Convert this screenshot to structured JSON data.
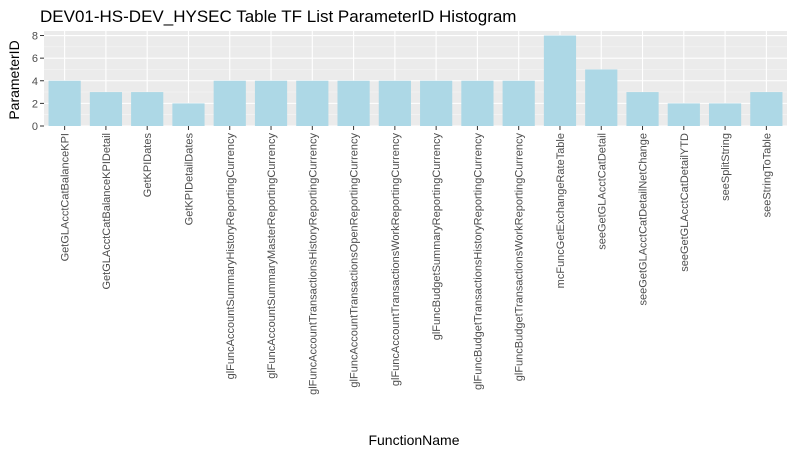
{
  "chart_data": {
    "type": "bar",
    "title": "DEV01-HS-DEV_HYSEC Table TF List ParameterID Histogram",
    "xlabel": "FunctionName",
    "ylabel": "ParameterID",
    "ylim": [
      0,
      8.4
    ],
    "yticks": [
      0,
      2,
      4,
      6,
      8
    ],
    "grid": true,
    "colors": {
      "bar": "#add8e6",
      "panel": "#ebebeb",
      "grid_major": "#ffffff",
      "text": "#000000",
      "tick_text": "#4d4d4d"
    },
    "categories": [
      "GetGLAcctCatBalanceKPI",
      "GetGLAcctCatBalanceKPIDetail",
      "GetKPIDates",
      "GetKPIDetailDates",
      "glFuncAccountSummaryHistoryReportingCurrency",
      "glFuncAccountSummaryMasterReportingCurrency",
      "glFuncAccountTransactionsHistoryReportingCurrency",
      "glFuncAccountTransactionsOpenReportingCurrency",
      "glFuncAccountTransactionsWorkReportingCurrency",
      "glFuncBudgetSummaryReportingCurrency",
      "glFuncBudgetTransactionsHistoryReportingCurrency",
      "glFuncBudgetTransactionsWorkReportingCurrency",
      "mcFuncGetExchangeRateTable",
      "seeGetGLAcctCatDetail",
      "seeGetGLAcctCatDetailNetChange",
      "seeGetGLAcctCatDetailYTD",
      "seeSplitString",
      "seeStringToTable"
    ],
    "values": [
      4,
      3,
      3,
      2,
      4,
      4,
      4,
      4,
      4,
      4,
      4,
      4,
      8,
      5,
      3,
      2,
      2,
      3
    ]
  }
}
